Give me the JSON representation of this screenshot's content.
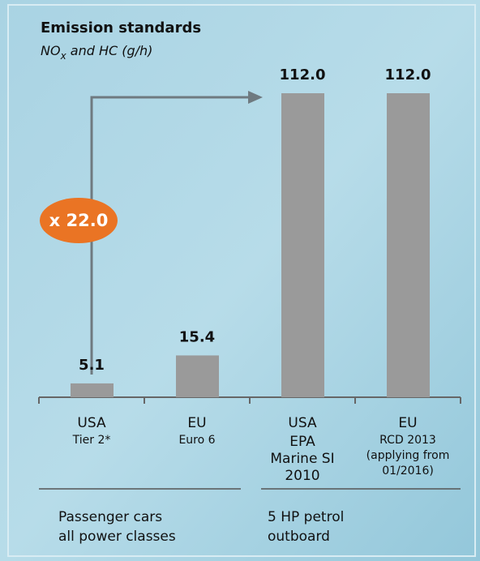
{
  "chart_data": {
    "type": "bar",
    "title": "Emission standards",
    "subtitle": [
      "NO",
      "x",
      " and HC (g/h)"
    ],
    "categories": [
      "USA",
      "EU",
      "USA",
      "EU"
    ],
    "category_details": [
      [
        "Tier 2*"
      ],
      [
        "Euro 6"
      ],
      [
        "EPA",
        "Marine SI",
        "2010"
      ],
      [
        "RCD 2013",
        "(applying from",
        "01/2016)"
      ]
    ],
    "values": [
      5.1,
      15.4,
      112.0,
      112.0
    ],
    "value_labels": [
      "5.1",
      "15.4",
      "112.0",
      "112.0"
    ],
    "color": "#9a9a9a",
    "groups": [
      [
        "Passenger cars",
        "all power classes"
      ],
      [
        "5 HP petrol",
        "outboard"
      ]
    ],
    "annotation": "x 22.0",
    "annotation_color": "#ea7424"
  }
}
